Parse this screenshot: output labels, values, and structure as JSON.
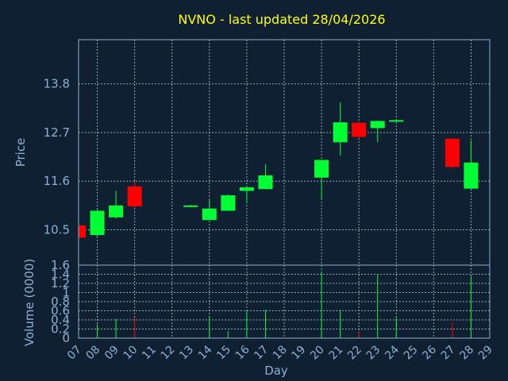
{
  "chart_data": {
    "type": "candlestick",
    "title": "NVNO - last updated 28/04/2026",
    "xlabel": "Day",
    "price_panel": {
      "ylabel": "Price",
      "yticks": [
        10.5,
        11.6,
        12.7,
        13.8
      ],
      "ylim": [
        9.7,
        14.8
      ]
    },
    "volume_panel": {
      "ylabel": "Volume (0000)",
      "yticks": [
        "0",
        "0.2",
        "0.4",
        "0.6",
        "0.8",
        "1",
        "1.2",
        "1.4",
        "1.6"
      ],
      "ylim": [
        0,
        1.6
      ]
    },
    "x_ticks": [
      "07",
      "08",
      "09",
      "10",
      "11",
      "12",
      "13",
      "14",
      "15",
      "16",
      "17",
      "18",
      "19",
      "20",
      "21",
      "22",
      "23",
      "24",
      "25",
      "26",
      "27",
      "28",
      "29"
    ],
    "grid": true,
    "colors": {
      "up": "#00ff33",
      "down": "#ff0000",
      "title": "#ffff00",
      "axis": "#8fb0d0",
      "background": "#0f2033"
    },
    "candles": [
      {
        "day": "07",
        "open": 10.6,
        "high": 10.62,
        "low": 10.32,
        "close": 10.32,
        "volume": 0.0
      },
      {
        "day": "08",
        "open": 10.38,
        "high": 10.95,
        "low": 10.35,
        "close": 10.93,
        "volume": 0.3
      },
      {
        "day": "09",
        "open": 10.78,
        "high": 11.38,
        "low": 10.75,
        "close": 11.05,
        "volume": 0.42
      },
      {
        "day": "10",
        "open": 11.48,
        "high": 11.6,
        "low": 10.98,
        "close": 11.03,
        "volume": 0.45
      },
      {
        "day": "13",
        "open": 11.03,
        "high": 11.06,
        "low": 11.02,
        "close": 11.05,
        "volume": 0.0
      },
      {
        "day": "14",
        "open": 10.72,
        "high": 11.18,
        "low": 10.72,
        "close": 10.98,
        "volume": 0.48
      },
      {
        "day": "15",
        "open": 10.93,
        "high": 11.3,
        "low": 10.93,
        "close": 11.28,
        "volume": 0.15
      },
      {
        "day": "16",
        "open": 11.38,
        "high": 11.48,
        "low": 11.12,
        "close": 11.46,
        "volume": 0.6
      },
      {
        "day": "17",
        "open": 11.42,
        "high": 11.98,
        "low": 11.42,
        "close": 11.73,
        "volume": 0.62
      },
      {
        "day": "20",
        "open": 11.68,
        "high": 12.08,
        "low": 11.18,
        "close": 12.08,
        "volume": 1.45
      },
      {
        "day": "21",
        "open": 12.48,
        "high": 13.38,
        "low": 12.18,
        "close": 12.93,
        "volume": 0.62
      },
      {
        "day": "22",
        "open": 12.92,
        "high": 12.93,
        "low": 12.58,
        "close": 12.6,
        "volume": 0.15
      },
      {
        "day": "23",
        "open": 12.8,
        "high": 12.98,
        "low": 12.48,
        "close": 12.96,
        "volume": 1.4
      },
      {
        "day": "24",
        "open": 12.96,
        "high": 12.98,
        "low": 12.94,
        "close": 12.98,
        "volume": 0.45
      },
      {
        "day": "27",
        "open": 12.56,
        "high": 12.58,
        "low": 11.88,
        "close": 11.92,
        "volume": 0.35
      },
      {
        "day": "28",
        "open": 11.43,
        "high": 12.52,
        "low": 11.43,
        "close": 12.02,
        "volume": 1.35
      }
    ]
  }
}
